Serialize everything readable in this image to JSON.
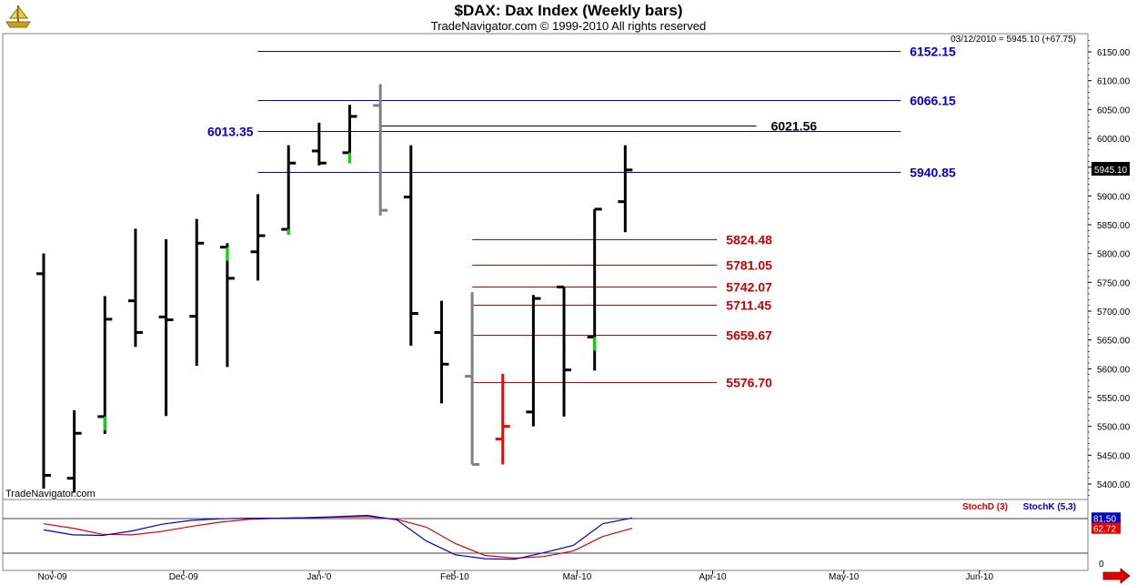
{
  "header": {
    "title": "$DAX:  Dax Index  (Weekly bars)",
    "subtitle": "TradeNavigator.com © 1999-2010 All rights reserved",
    "status": "03/12/2010 = 5945.10 (+67.75)",
    "watermark": "TradeNavigator.com"
  },
  "colors": {
    "bar": "#000000",
    "bar_gray": "#808080",
    "bar_red": "#ff0000",
    "green_tick": "#00dd00",
    "blue_level": "#0000cc",
    "red_level": "#cc0000",
    "stoch_d": "#dd0000",
    "stoch_k": "#0000cc"
  },
  "chart_data": [
    {
      "type": "ohlc",
      "title": "$DAX:  Dax Index  (Weekly bars)",
      "ylim": [
        5375,
        6175
      ],
      "y_ticks": [
        "5400.00",
        "5450.00",
        "5500.00",
        "5550.00",
        "5600.00",
        "5650.00",
        "5700.00",
        "5750.00",
        "5800.00",
        "5850.00",
        "5900.00",
        "5950.00",
        "6000.00",
        "6050.00",
        "6100.00",
        "6150.00"
      ],
      "y_tick_values": [
        5400,
        5450,
        5500,
        5550,
        5600,
        5650,
        5700,
        5750,
        5800,
        5850,
        5900,
        5950,
        6000,
        6050,
        6100,
        6150
      ],
      "x_labels": [
        "Nov-09",
        "Dec-09",
        "Jan-'0",
        "Feb-10",
        "Mar-10",
        "Apr-10",
        "May-10",
        "Jun-10"
      ],
      "x_label_dates": [
        "2009-11-01",
        "2009-12-01",
        "2010-01-01",
        "2010-02-01",
        "2010-03-01",
        "2010-04-01",
        "2010-05-01",
        "2010-06-01"
      ],
      "last_price_label": "5945.10",
      "bars": [
        {
          "week": "2009-10-30",
          "open": 5765,
          "high": 5800,
          "low": 5392,
          "close": 5415,
          "color": "black"
        },
        {
          "week": "2009-11-06",
          "open": 5410,
          "high": 5528,
          "low": 5385,
          "close": 5488,
          "color": "black"
        },
        {
          "week": "2009-11-13",
          "open": 5517,
          "high": 5726,
          "low": 5487,
          "close": 5686,
          "color": "black",
          "up_tick": true
        },
        {
          "week": "2009-11-20",
          "open": 5718,
          "high": 5843,
          "low": 5638,
          "close": 5663,
          "color": "black"
        },
        {
          "week": "2009-11-27",
          "open": 5690,
          "high": 5825,
          "low": 5518,
          "close": 5685,
          "color": "black"
        },
        {
          "week": "2009-12-04",
          "open": 5691,
          "high": 5860,
          "low": 5605,
          "close": 5818,
          "color": "black"
        },
        {
          "week": "2009-12-11",
          "open": 5811,
          "high": 5818,
          "low": 5603,
          "close": 5757,
          "color": "black",
          "up_tick": true
        },
        {
          "week": "2009-12-18",
          "open": 5803,
          "high": 5903,
          "low": 5753,
          "close": 5831,
          "color": "black"
        },
        {
          "week": "2009-12-25",
          "open": 5842,
          "high": 5988,
          "low": 5833,
          "close": 5957,
          "color": "black",
          "up_tick": true
        },
        {
          "week": "2010-01-01",
          "open": 5978,
          "high": 6027,
          "low": 5953,
          "close": 5957,
          "color": "black"
        },
        {
          "week": "2010-01-08",
          "open": 5975,
          "high": 6058,
          "low": 5957,
          "close": 6038,
          "color": "black",
          "up_tick": true
        },
        {
          "week": "2010-01-15",
          "open": 6057,
          "high": 6094,
          "low": 5866,
          "close": 5875,
          "color": "gray"
        },
        {
          "week": "2010-01-22",
          "open": 5898,
          "high": 5988,
          "low": 5640,
          "close": 5696,
          "color": "black"
        },
        {
          "week": "2010-01-29",
          "open": 5663,
          "high": 5718,
          "low": 5540,
          "close": 5608,
          "color": "black"
        },
        {
          "week": "2010-02-05",
          "open": 5587,
          "high": 5733,
          "low": 5434,
          "close": 5434,
          "color": "gray"
        },
        {
          "week": "2010-02-12",
          "open": 5478,
          "high": 5591,
          "low": 5434,
          "close": 5500,
          "color": "red"
        },
        {
          "week": "2010-02-19",
          "open": 5525,
          "high": 5728,
          "low": 5500,
          "close": 5722,
          "color": "black"
        },
        {
          "week": "2010-02-26",
          "open": 5742,
          "high": 5742,
          "low": 5517,
          "close": 5598,
          "color": "black"
        },
        {
          "week": "2010-03-05",
          "open": 5655,
          "high": 5877,
          "low": 5597,
          "close": 5877,
          "color": "black",
          "up_tick": true
        },
        {
          "week": "2010-03-12",
          "open": 5890,
          "high": 5988,
          "low": 5837,
          "close": 5945,
          "color": "black"
        }
      ],
      "levels": [
        {
          "value": 6152.15,
          "label": "6152.15",
          "color": "blue",
          "start": "2009-12-18",
          "end": "2010-05-14",
          "label_side": "right"
        },
        {
          "value": 6066.15,
          "label": "6066.15",
          "color": "blue",
          "start": "2009-12-18",
          "end": "2010-05-14",
          "label_side": "right"
        },
        {
          "value": 6013.35,
          "label": "6013.35",
          "color": "blue",
          "start": "2009-12-18",
          "end": "2010-05-14",
          "label_side": "left"
        },
        {
          "value": 5940.85,
          "label": "5940.85",
          "color": "blue",
          "start": "2009-12-18",
          "end": "2010-05-14",
          "label_side": "right"
        },
        {
          "value": 6021.56,
          "label": "6021.56",
          "color": "black",
          "start": "2010-01-15",
          "end": "2010-04-11",
          "label_side": "right"
        },
        {
          "value": 5824.48,
          "label": "5824.48",
          "color": "red",
          "start": "2010-02-05",
          "end": "2010-04-02",
          "label_side": "right"
        },
        {
          "value": 5781.05,
          "label": "5781.05",
          "color": "red",
          "start": "2010-02-05",
          "end": "2010-04-02",
          "label_side": "right"
        },
        {
          "value": 5742.07,
          "label": "5742.07",
          "color": "red",
          "start": "2010-02-05",
          "end": "2010-04-02",
          "label_side": "right"
        },
        {
          "value": 5711.45,
          "label": "5711.45",
          "color": "red",
          "start": "2010-02-05",
          "end": "2010-04-02",
          "label_side": "right"
        },
        {
          "value": 5659.67,
          "label": "5659.67",
          "color": "red",
          "start": "2010-02-05",
          "end": "2010-04-02",
          "label_side": "right"
        },
        {
          "value": 5576.7,
          "label": "5576.70",
          "color": "red",
          "start": "2010-02-05",
          "end": "2010-04-02",
          "label_side": "right"
        }
      ]
    },
    {
      "type": "line",
      "title": "",
      "legend": [
        "StochD (3)",
        "StochK (5,3)"
      ],
      "ylim": [
        0,
        100
      ],
      "y_ticks": [
        "0"
      ],
      "series": [
        {
          "name": "StochD (3)",
          "color": "red",
          "values": [
            71,
            63,
            52,
            51,
            57,
            66,
            74,
            79,
            81,
            82,
            83,
            84,
            79,
            65,
            35,
            14,
            9,
            12,
            22,
            48,
            62.72
          ]
        },
        {
          "name": "StochK (5,3)",
          "color": "blue",
          "values": [
            60,
            51,
            50,
            58,
            70,
            77,
            80,
            81,
            81,
            82,
            84,
            86,
            78,
            40,
            15,
            8,
            7,
            19,
            32,
            71,
            81.5
          ]
        }
      ],
      "last_values": [
        "81.50",
        "62.72"
      ]
    }
  ]
}
